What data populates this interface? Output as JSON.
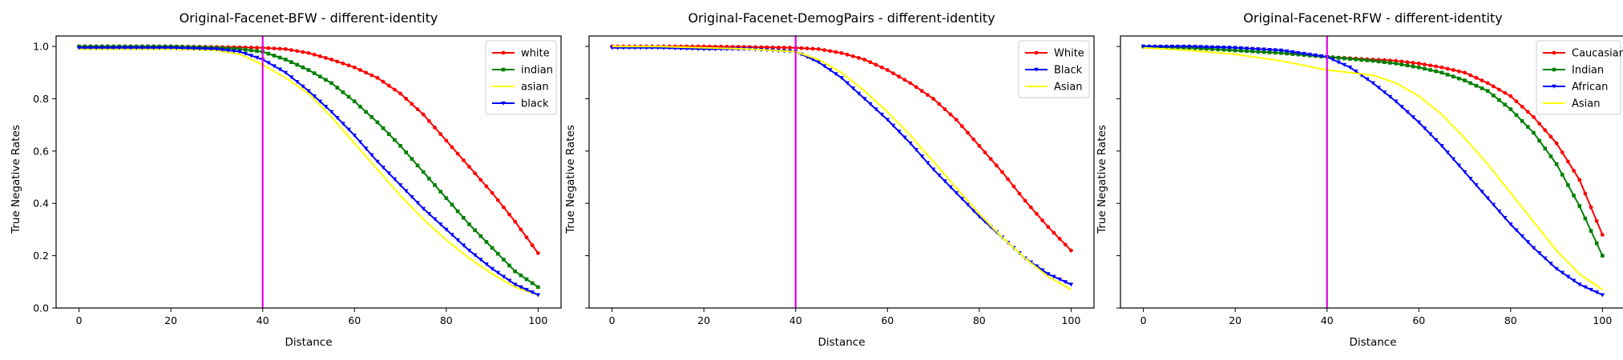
{
  "chart_data": [
    {
      "type": "line",
      "title": "Original-Facenet-BFW - different-identity",
      "xlabel": "Distance",
      "ylabel": "True Negative Rates",
      "xlim": [
        -5,
        105
      ],
      "ylim": [
        0,
        1.04
      ],
      "xticks": [
        0,
        20,
        40,
        60,
        80,
        100
      ],
      "yticks": [
        0.0,
        0.2,
        0.4,
        0.6,
        0.8,
        1.0
      ],
      "ytick_labels": [
        "0.0",
        "0.2",
        "0.4",
        "0.6",
        "0.8",
        "1.0"
      ],
      "show_ytick_labels": true,
      "grid": false,
      "legend": "top-right",
      "vline": {
        "x": 40,
        "color": "#e600e6"
      },
      "series": [
        {
          "name": "white",
          "color": "#ff0000",
          "marker": "circle",
          "points": [
            [
              0,
              1.0
            ],
            [
              10,
              1.0
            ],
            [
              20,
              1.0
            ],
            [
              30,
              0.998
            ],
            [
              40,
              0.995
            ],
            [
              45,
              0.99
            ],
            [
              50,
              0.975
            ],
            [
              55,
              0.95
            ],
            [
              60,
              0.92
            ],
            [
              65,
              0.88
            ],
            [
              70,
              0.82
            ],
            [
              75,
              0.74
            ],
            [
              80,
              0.64
            ],
            [
              85,
              0.54
            ],
            [
              90,
              0.44
            ],
            [
              95,
              0.33
            ],
            [
              100,
              0.21
            ]
          ]
        },
        {
          "name": "indian",
          "color": "#008000",
          "marker": "square",
          "points": [
            [
              0,
              1.0
            ],
            [
              10,
              1.0
            ],
            [
              20,
              1.0
            ],
            [
              30,
              0.995
            ],
            [
              35,
              0.99
            ],
            [
              40,
              0.98
            ],
            [
              45,
              0.95
            ],
            [
              50,
              0.91
            ],
            [
              55,
              0.86
            ],
            [
              60,
              0.79
            ],
            [
              65,
              0.71
            ],
            [
              70,
              0.62
            ],
            [
              75,
              0.52
            ],
            [
              80,
              0.42
            ],
            [
              85,
              0.32
            ],
            [
              90,
              0.23
            ],
            [
              95,
              0.14
            ],
            [
              100,
              0.08
            ]
          ]
        },
        {
          "name": "asian",
          "color": "#ffff00",
          "marker": "none",
          "points": [
            [
              0,
              0.99
            ],
            [
              10,
              0.99
            ],
            [
              20,
              0.99
            ],
            [
              30,
              0.985
            ],
            [
              35,
              0.97
            ],
            [
              40,
              0.93
            ],
            [
              45,
              0.88
            ],
            [
              50,
              0.82
            ],
            [
              55,
              0.73
            ],
            [
              60,
              0.63
            ],
            [
              65,
              0.53
            ],
            [
              70,
              0.43
            ],
            [
              75,
              0.34
            ],
            [
              80,
              0.26
            ],
            [
              85,
              0.19
            ],
            [
              90,
              0.13
            ],
            [
              95,
              0.08
            ],
            [
              100,
              0.05
            ]
          ]
        },
        {
          "name": "black",
          "color": "#0000ff",
          "marker": "triangle",
          "points": [
            [
              0,
              0.995
            ],
            [
              10,
              0.995
            ],
            [
              20,
              0.995
            ],
            [
              30,
              0.99
            ],
            [
              35,
              0.98
            ],
            [
              40,
              0.95
            ],
            [
              45,
              0.9
            ],
            [
              50,
              0.83
            ],
            [
              55,
              0.75
            ],
            [
              60,
              0.66
            ],
            [
              65,
              0.56
            ],
            [
              70,
              0.47
            ],
            [
              75,
              0.38
            ],
            [
              80,
              0.3
            ],
            [
              85,
              0.22
            ],
            [
              90,
              0.15
            ],
            [
              95,
              0.09
            ],
            [
              100,
              0.05
            ]
          ]
        }
      ]
    },
    {
      "type": "line",
      "title": "Original-Facenet-DemogPairs - different-identity",
      "xlabel": "Distance",
      "ylabel": "True Negative Rates",
      "xlim": [
        -5,
        105
      ],
      "ylim": [
        0,
        1.04
      ],
      "xticks": [
        0,
        20,
        40,
        60,
        80,
        100
      ],
      "yticks": [
        0.0,
        0.2,
        0.4,
        0.6,
        0.8,
        1.0
      ],
      "ytick_labels": [],
      "show_ytick_labels": false,
      "grid": false,
      "legend": "top-right",
      "vline": {
        "x": 40,
        "color": "#e600e6"
      },
      "series": [
        {
          "name": "White",
          "color": "#ff0000",
          "marker": "circle",
          "points": [
            [
              0,
              1.0
            ],
            [
              10,
              1.0
            ],
            [
              20,
              1.0
            ],
            [
              30,
              0.998
            ],
            [
              40,
              0.995
            ],
            [
              45,
              0.99
            ],
            [
              50,
              0.975
            ],
            [
              55,
              0.95
            ],
            [
              60,
              0.91
            ],
            [
              65,
              0.86
            ],
            [
              70,
              0.8
            ],
            [
              75,
              0.72
            ],
            [
              80,
              0.62
            ],
            [
              85,
              0.52
            ],
            [
              90,
              0.41
            ],
            [
              95,
              0.31
            ],
            [
              100,
              0.22
            ]
          ]
        },
        {
          "name": "Black",
          "color": "#0000ff",
          "marker": "triangle",
          "points": [
            [
              0,
              0.995
            ],
            [
              10,
              0.995
            ],
            [
              20,
              0.99
            ],
            [
              30,
              0.99
            ],
            [
              40,
              0.98
            ],
            [
              45,
              0.94
            ],
            [
              50,
              0.88
            ],
            [
              55,
              0.8
            ],
            [
              60,
              0.72
            ],
            [
              65,
              0.63
            ],
            [
              70,
              0.53
            ],
            [
              75,
              0.44
            ],
            [
              80,
              0.35
            ],
            [
              85,
              0.27
            ],
            [
              90,
              0.19
            ],
            [
              95,
              0.13
            ],
            [
              100,
              0.09
            ]
          ]
        },
        {
          "name": "Asian",
          "color": "#ffff00",
          "marker": "none",
          "points": [
            [
              0,
              1.0
            ],
            [
              10,
              1.0
            ],
            [
              20,
              0.995
            ],
            [
              30,
              0.99
            ],
            [
              40,
              0.98
            ],
            [
              45,
              0.95
            ],
            [
              50,
              0.9
            ],
            [
              55,
              0.83
            ],
            [
              60,
              0.75
            ],
            [
              65,
              0.66
            ],
            [
              70,
              0.56
            ],
            [
              75,
              0.46
            ],
            [
              80,
              0.36
            ],
            [
              85,
              0.27
            ],
            [
              90,
              0.19
            ],
            [
              95,
              0.12
            ],
            [
              100,
              0.07
            ]
          ]
        }
      ]
    },
    {
      "type": "line",
      "title": "Original-Facenet-RFW - different-identity",
      "xlabel": "Distance",
      "ylabel": "True Negative Rates",
      "xlim": [
        -5,
        105
      ],
      "ylim": [
        0,
        1.04
      ],
      "xticks": [
        0,
        20,
        40,
        60,
        80,
        100
      ],
      "yticks": [
        0.0,
        0.2,
        0.4,
        0.6,
        0.8,
        1.0
      ],
      "ytick_labels": [],
      "show_ytick_labels": false,
      "grid": false,
      "legend": "top-right",
      "vline": {
        "x": 40,
        "color": "#e600e6"
      },
      "series": [
        {
          "name": "Caucasian",
          "color": "#ff0000",
          "marker": "circle",
          "points": [
            [
              0,
              1.0
            ],
            [
              10,
              0.995
            ],
            [
              20,
              0.985
            ],
            [
              30,
              0.975
            ],
            [
              40,
              0.96
            ],
            [
              50,
              0.95
            ],
            [
              55,
              0.945
            ],
            [
              60,
              0.935
            ],
            [
              65,
              0.92
            ],
            [
              70,
              0.9
            ],
            [
              75,
              0.86
            ],
            [
              80,
              0.81
            ],
            [
              85,
              0.73
            ],
            [
              90,
              0.63
            ],
            [
              95,
              0.49
            ],
            [
              100,
              0.28
            ]
          ]
        },
        {
          "name": "Indian",
          "color": "#008000",
          "marker": "square",
          "points": [
            [
              0,
              1.0
            ],
            [
              10,
              0.995
            ],
            [
              20,
              0.985
            ],
            [
              30,
              0.975
            ],
            [
              40,
              0.96
            ],
            [
              50,
              0.945
            ],
            [
              55,
              0.935
            ],
            [
              60,
              0.92
            ],
            [
              65,
              0.9
            ],
            [
              70,
              0.87
            ],
            [
              75,
              0.83
            ],
            [
              80,
              0.76
            ],
            [
              85,
              0.67
            ],
            [
              90,
              0.55
            ],
            [
              95,
              0.39
            ],
            [
              100,
              0.2
            ]
          ]
        },
        {
          "name": "African",
          "color": "#0000ff",
          "marker": "triangle",
          "points": [
            [
              0,
              1.0
            ],
            [
              10,
              1.0
            ],
            [
              20,
              0.995
            ],
            [
              30,
              0.985
            ],
            [
              40,
              0.96
            ],
            [
              45,
              0.92
            ],
            [
              50,
              0.86
            ],
            [
              55,
              0.79
            ],
            [
              60,
              0.71
            ],
            [
              65,
              0.62
            ],
            [
              70,
              0.52
            ],
            [
              75,
              0.42
            ],
            [
              80,
              0.32
            ],
            [
              85,
              0.23
            ],
            [
              90,
              0.15
            ],
            [
              95,
              0.09
            ],
            [
              100,
              0.05
            ]
          ]
        },
        {
          "name": "Asian",
          "color": "#ffff00",
          "marker": "none",
          "points": [
            [
              0,
              0.995
            ],
            [
              10,
              0.985
            ],
            [
              20,
              0.97
            ],
            [
              30,
              0.945
            ],
            [
              40,
              0.91
            ],
            [
              45,
              0.9
            ],
            [
              50,
              0.89
            ],
            [
              55,
              0.86
            ],
            [
              60,
              0.81
            ],
            [
              65,
              0.74
            ],
            [
              70,
              0.65
            ],
            [
              75,
              0.55
            ],
            [
              80,
              0.44
            ],
            [
              85,
              0.33
            ],
            [
              90,
              0.22
            ],
            [
              95,
              0.13
            ],
            [
              100,
              0.07
            ]
          ]
        }
      ]
    }
  ]
}
